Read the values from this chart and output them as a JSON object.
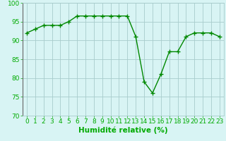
{
  "x": [
    0,
    1,
    2,
    3,
    4,
    5,
    6,
    7,
    8,
    9,
    10,
    11,
    12,
    13,
    14,
    15,
    16,
    17,
    18,
    19,
    20,
    21,
    22,
    23
  ],
  "y": [
    92,
    93,
    94,
    94,
    94,
    95,
    96.5,
    96.5,
    96.5,
    96.5,
    96.5,
    96.5,
    96.5,
    91,
    79,
    76,
    81,
    87,
    87,
    91,
    92,
    92,
    92,
    91
  ],
  "line_color": "#008800",
  "marker": "+",
  "marker_size": 4,
  "bg_color": "#d8f4f4",
  "grid_color": "#a8cccc",
  "xlabel": "Humidité relative (%)",
  "xlim": [
    -0.5,
    23.5
  ],
  "ylim": [
    70,
    100
  ],
  "yticks": [
    70,
    75,
    80,
    85,
    90,
    95,
    100
  ],
  "xticks": [
    0,
    1,
    2,
    3,
    4,
    5,
    6,
    7,
    8,
    9,
    10,
    11,
    12,
    13,
    14,
    15,
    16,
    17,
    18,
    19,
    20,
    21,
    22,
    23
  ],
  "xlabel_fontsize": 7.5,
  "tick_fontsize": 6.5,
  "line_width": 1.0,
  "spine_color": "#666666",
  "label_color": "#00aa00"
}
